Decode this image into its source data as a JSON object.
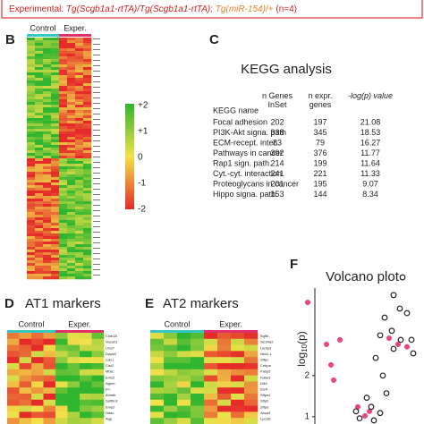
{
  "header": {
    "prefix": "Experimental:",
    "driver": "Tg(Scgb1a1-rtTA)/Tg(Scgb1a1-rtTA);",
    "transgene": "Tg(miR-154)/+",
    "n": "(n=4)"
  },
  "panel_b": {
    "label": "B",
    "groups": [
      "Control",
      "Exper."
    ],
    "colorbar": [
      "+2",
      "+1",
      "0",
      "-1",
      "-2"
    ]
  },
  "panel_c": {
    "label": "C",
    "title": "KEGG analysis",
    "columns": [
      "KEGG name",
      "n Genes InSet",
      "n expr. genes",
      "-log(p) value"
    ],
    "rows": [
      [
        "Focal adhesion",
        "202",
        "197",
        "21.08"
      ],
      [
        "PI3K-Akt signa. path",
        "338",
        "345",
        "18.53"
      ],
      [
        "ECM-recept. inter.",
        "83",
        "79",
        "16.27"
      ],
      [
        "Pathways in cancer",
        "392",
        "376",
        "11.77"
      ],
      [
        "Rap1 sign. path.",
        "214",
        "199",
        "11.64"
      ],
      [
        "Cyt.-cyt. interaction",
        "241",
        "221",
        "11.33"
      ],
      [
        "Proteoglycans in cancer",
        "201",
        "195",
        "9.07"
      ],
      [
        "Hippo signa. path.",
        "153",
        "144",
        "8.34"
      ]
    ]
  },
  "panel_d": {
    "label": "D",
    "title": "AT1 markers",
    "groups": [
      "Control",
      "Exper."
    ],
    "genes": [
      "Cldn18",
      "Vacan1",
      "Lmo7",
      "Dpysl2",
      "Cav1",
      "Cav2",
      "Mbsc",
      "Ems2",
      "Agem",
      "Fn",
      "Ahnak",
      "Spttbn1",
      "Emp2",
      "Hdac",
      "Aqp"
    ]
  },
  "panel_e": {
    "label": "E",
    "title": "AT2 markers",
    "groups": [
      "Control",
      "Exper."
    ],
    "genes": [
      "Egfl6",
      "Slc34a2",
      "Lamp3",
      "Nkx2-1",
      "Sftpc",
      "Cebpa",
      "Fabp5",
      "Fabp3",
      "Dlk1",
      "Etv5",
      "Sftpa1",
      "Sftpb",
      "Sftpd",
      "Abca3",
      "Lpcat1"
    ]
  },
  "panel_f": {
    "label": "F",
    "title": "Volcano plot",
    "y_label": [
      "log",
      "10",
      "(p)"
    ],
    "xlim": [
      0,
      13.5
    ],
    "ylim": [
      0.8,
      4.5
    ],
    "yticks": [
      1,
      2
    ],
    "series": [
      {
        "color": "#e8467c",
        "x": [
          0.9,
          3.0,
          3.5,
          3.8,
          4.5,
          6.5,
          7.3,
          7.8,
          12.0,
          11.0,
          10.0
        ],
        "y": [
          3.78,
          2.76,
          2.26,
          1.89,
          2.87,
          1.24,
          1.02,
          1.13,
          2.7,
          2.76,
          2.91
        ]
      },
      {
        "color": "#8a8a8a",
        "x": [
          11.5,
          10.5,
          11.2,
          9.5,
          12.0,
          10.3,
          9.0,
          11.3,
          10.5,
          8.5,
          9.3,
          9.7,
          7.5,
          9.0,
          8.3,
          6.3,
          6.7,
          12.5,
          12.7,
          8.0
        ],
        "y": [
          4.39,
          3.96,
          3.63,
          3.41,
          3.52,
          3.09,
          2.98,
          2.87,
          2.65,
          2.43,
          2.0,
          1.57,
          1.46,
          1.09,
          0.91,
          1.13,
          0.96,
          2.87,
          2.54,
          1.24
        ]
      }
    ]
  }
}
